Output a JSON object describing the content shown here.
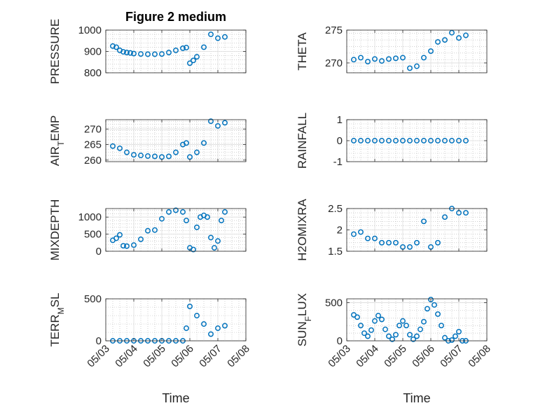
{
  "figure": {
    "title": "Figure 2 medium"
  },
  "style": {
    "marker_color": "#0072BD",
    "axis_color": "#262626",
    "grid_color": "#b3b3b3"
  },
  "chart_data": [
    {
      "type": "scatter",
      "ylabel": "PRESSURE",
      "ylim": [
        800,
        1000
      ],
      "yticks": [
        800,
        900,
        1000
      ],
      "ytick_labels": [
        "800",
        "900",
        "1000"
      ],
      "grid": true,
      "x": [
        "05/03 06:00",
        "05/03 09:00",
        "05/03 12:00",
        "05/03 15:00",
        "05/03 18:00",
        "05/03 21:00",
        "05/04 00:00",
        "05/04 06:00",
        "05/04 12:00",
        "05/04 18:00",
        "05/05 00:00",
        "05/05 06:00",
        "05/05 12:00",
        "05/05 18:00",
        "05/05 21:00",
        "05/06 00:00",
        "05/06 03:00",
        "05/06 06:00",
        "05/06 12:00",
        "05/06 18:00",
        "05/07 00:00",
        "05/07 06:00"
      ],
      "y": [
        925,
        920,
        905,
        898,
        895,
        893,
        890,
        888,
        887,
        887,
        888,
        895,
        905,
        915,
        918,
        845,
        858,
        875,
        920,
        980,
        962,
        968
      ]
    },
    {
      "type": "scatter",
      "ylabel": "THETA",
      "ylim": [
        268.5,
        275
      ],
      "yticks": [
        270,
        275
      ],
      "ytick_labels": [
        "270",
        "275"
      ],
      "grid": true,
      "x": [
        "05/03 06:00",
        "05/03 12:00",
        "05/03 18:00",
        "05/04 00:00",
        "05/04 06:00",
        "05/04 12:00",
        "05/04 18:00",
        "05/05 00:00",
        "05/05 06:00",
        "05/05 12:00",
        "05/05 18:00",
        "05/06 00:00",
        "05/06 06:00",
        "05/06 12:00",
        "05/06 18:00",
        "05/07 00:00",
        "05/07 06:00"
      ],
      "y": [
        270.5,
        270.8,
        270.2,
        270.6,
        270.3,
        270.6,
        270.7,
        270.8,
        269.2,
        269.5,
        270.8,
        271.8,
        273.2,
        273.5,
        274.6,
        273.8,
        274.2
      ]
    },
    {
      "type": "scatter",
      "ylabel": "AIR_TEMP",
      "ylim": [
        259.5,
        273
      ],
      "yticks": [
        260,
        265,
        270
      ],
      "ytick_labels": [
        "260",
        "265",
        "270"
      ],
      "grid": true,
      "x": [
        "05/03 06:00",
        "05/03 12:00",
        "05/03 18:00",
        "05/04 00:00",
        "05/04 06:00",
        "05/04 12:00",
        "05/04 18:00",
        "05/05 00:00",
        "05/05 06:00",
        "05/05 12:00",
        "05/05 18:00",
        "05/05 21:00",
        "05/06 00:00",
        "05/06 06:00",
        "05/06 12:00",
        "05/06 18:00",
        "05/07 00:00",
        "05/07 06:00"
      ],
      "y": [
        264.5,
        263.8,
        262.5,
        261.7,
        261.5,
        261.3,
        261.2,
        261.0,
        261.2,
        262.5,
        265.0,
        265.5,
        261.0,
        262.5,
        265.5,
        272.5,
        271.0,
        272.0
      ]
    },
    {
      "type": "scatter",
      "ylabel": "RAINFALL",
      "ylim": [
        -1,
        1
      ],
      "yticks": [
        -1,
        0,
        1
      ],
      "ytick_labels": [
        "-1",
        "0",
        "1"
      ],
      "grid": true,
      "x": [
        "05/03 06:00",
        "05/03 12:00",
        "05/03 18:00",
        "05/04 00:00",
        "05/04 06:00",
        "05/04 12:00",
        "05/04 18:00",
        "05/05 00:00",
        "05/05 06:00",
        "05/05 12:00",
        "05/05 18:00",
        "05/06 00:00",
        "05/06 06:00",
        "05/06 12:00",
        "05/06 18:00",
        "05/07 00:00",
        "05/07 06:00"
      ],
      "y": [
        0,
        0,
        0,
        0,
        0,
        0,
        0,
        0,
        0,
        0,
        0,
        0,
        0,
        0,
        0,
        0,
        0
      ]
    },
    {
      "type": "scatter",
      "ylabel": "MIXDEPTH",
      "ylim": [
        0,
        1250
      ],
      "yticks": [
        0,
        500,
        1000
      ],
      "ytick_labels": [
        "0",
        "500",
        "1000"
      ],
      "grid": true,
      "x": [
        "05/03 06:00",
        "05/03 09:00",
        "05/03 12:00",
        "05/03 15:00",
        "05/03 18:00",
        "05/04 00:00",
        "05/04 06:00",
        "05/04 12:00",
        "05/04 18:00",
        "05/05 00:00",
        "05/05 06:00",
        "05/05 12:00",
        "05/05 18:00",
        "05/05 21:00",
        "05/06 00:00",
        "05/06 03:00",
        "05/06 06:00",
        "05/06 09:00",
        "05/06 12:00",
        "05/06 15:00",
        "05/06 18:00",
        "05/06 21:00",
        "05/07 00:00",
        "05/07 03:00",
        "05/07 06:00"
      ],
      "y": [
        320,
        380,
        480,
        160,
        150,
        180,
        350,
        600,
        620,
        950,
        1150,
        1200,
        1150,
        900,
        100,
        50,
        700,
        1000,
        1050,
        1000,
        400,
        100,
        300,
        900,
        1150
      ]
    },
    {
      "type": "scatter",
      "ylabel": "H2OMIXRA",
      "ylim": [
        1.5,
        2.5
      ],
      "yticks": [
        1.5,
        2,
        2.5
      ],
      "ytick_labels": [
        "1.5",
        "2",
        "2.5"
      ],
      "grid": true,
      "x": [
        "05/03 06:00",
        "05/03 12:00",
        "05/03 18:00",
        "05/04 00:00",
        "05/04 06:00",
        "05/04 12:00",
        "05/04 18:00",
        "05/05 00:00",
        "05/05 06:00",
        "05/05 12:00",
        "05/05 18:00",
        "05/06 00:00",
        "05/06 06:00",
        "05/06 12:00",
        "05/06 18:00",
        "05/07 00:00",
        "05/07 06:00"
      ],
      "y": [
        1.9,
        1.95,
        1.8,
        1.8,
        1.7,
        1.7,
        1.7,
        1.6,
        1.6,
        1.7,
        2.2,
        1.6,
        1.7,
        2.3,
        2.5,
        2.4,
        2.4
      ]
    },
    {
      "type": "scatter",
      "ylabel": "TERR_MSL",
      "ylim": [
        0,
        500
      ],
      "yticks": [
        0,
        500
      ],
      "ytick_labels": [
        "0",
        "500"
      ],
      "grid": true,
      "xlabel": "Time",
      "x": [
        "05/03 06:00",
        "05/03 12:00",
        "05/03 18:00",
        "05/04 00:00",
        "05/04 06:00",
        "05/04 12:00",
        "05/04 18:00",
        "05/05 00:00",
        "05/05 06:00",
        "05/05 12:00",
        "05/05 18:00",
        "05/05 21:00",
        "05/06 00:00",
        "05/06 06:00",
        "05/06 12:00",
        "05/06 18:00",
        "05/07 00:00",
        "05/07 06:00"
      ],
      "y": [
        0,
        0,
        0,
        0,
        0,
        0,
        0,
        0,
        0,
        0,
        0,
        150,
        410,
        300,
        200,
        80,
        150,
        180
      ]
    },
    {
      "type": "scatter",
      "ylabel": "SUN_FLUX",
      "ylim": [
        0,
        550
      ],
      "yticks": [
        0,
        500
      ],
      "ytick_labels": [
        "0",
        "500"
      ],
      "grid": true,
      "xlabel": "Time",
      "x": [
        "05/03 06:00",
        "05/03 09:00",
        "05/03 12:00",
        "05/03 15:00",
        "05/03 18:00",
        "05/03 21:00",
        "05/04 00:00",
        "05/04 03:00",
        "05/04 06:00",
        "05/04 09:00",
        "05/04 12:00",
        "05/04 15:00",
        "05/04 18:00",
        "05/04 21:00",
        "05/05 00:00",
        "05/05 03:00",
        "05/05 06:00",
        "05/05 09:00",
        "05/05 12:00",
        "05/05 15:00",
        "05/05 18:00",
        "05/05 21:00",
        "05/06 00:00",
        "05/06 03:00",
        "05/06 06:00",
        "05/06 09:00",
        "05/06 12:00",
        "05/06 15:00",
        "05/06 18:00",
        "05/06 21:00",
        "05/07 00:00",
        "05/07 03:00",
        "05/07 06:00"
      ],
      "y": [
        340,
        310,
        200,
        100,
        60,
        140,
        260,
        330,
        280,
        150,
        60,
        20,
        80,
        200,
        260,
        200,
        80,
        20,
        60,
        150,
        250,
        420,
        540,
        470,
        350,
        200,
        40,
        0,
        10,
        60,
        120,
        0,
        0
      ]
    }
  ],
  "xaxis": {
    "range": [
      "05/03 00:00",
      "05/08 00:00"
    ],
    "tick_labels": [
      "05/03",
      "05/04",
      "05/05",
      "05/06",
      "05/07",
      "05/08"
    ]
  }
}
